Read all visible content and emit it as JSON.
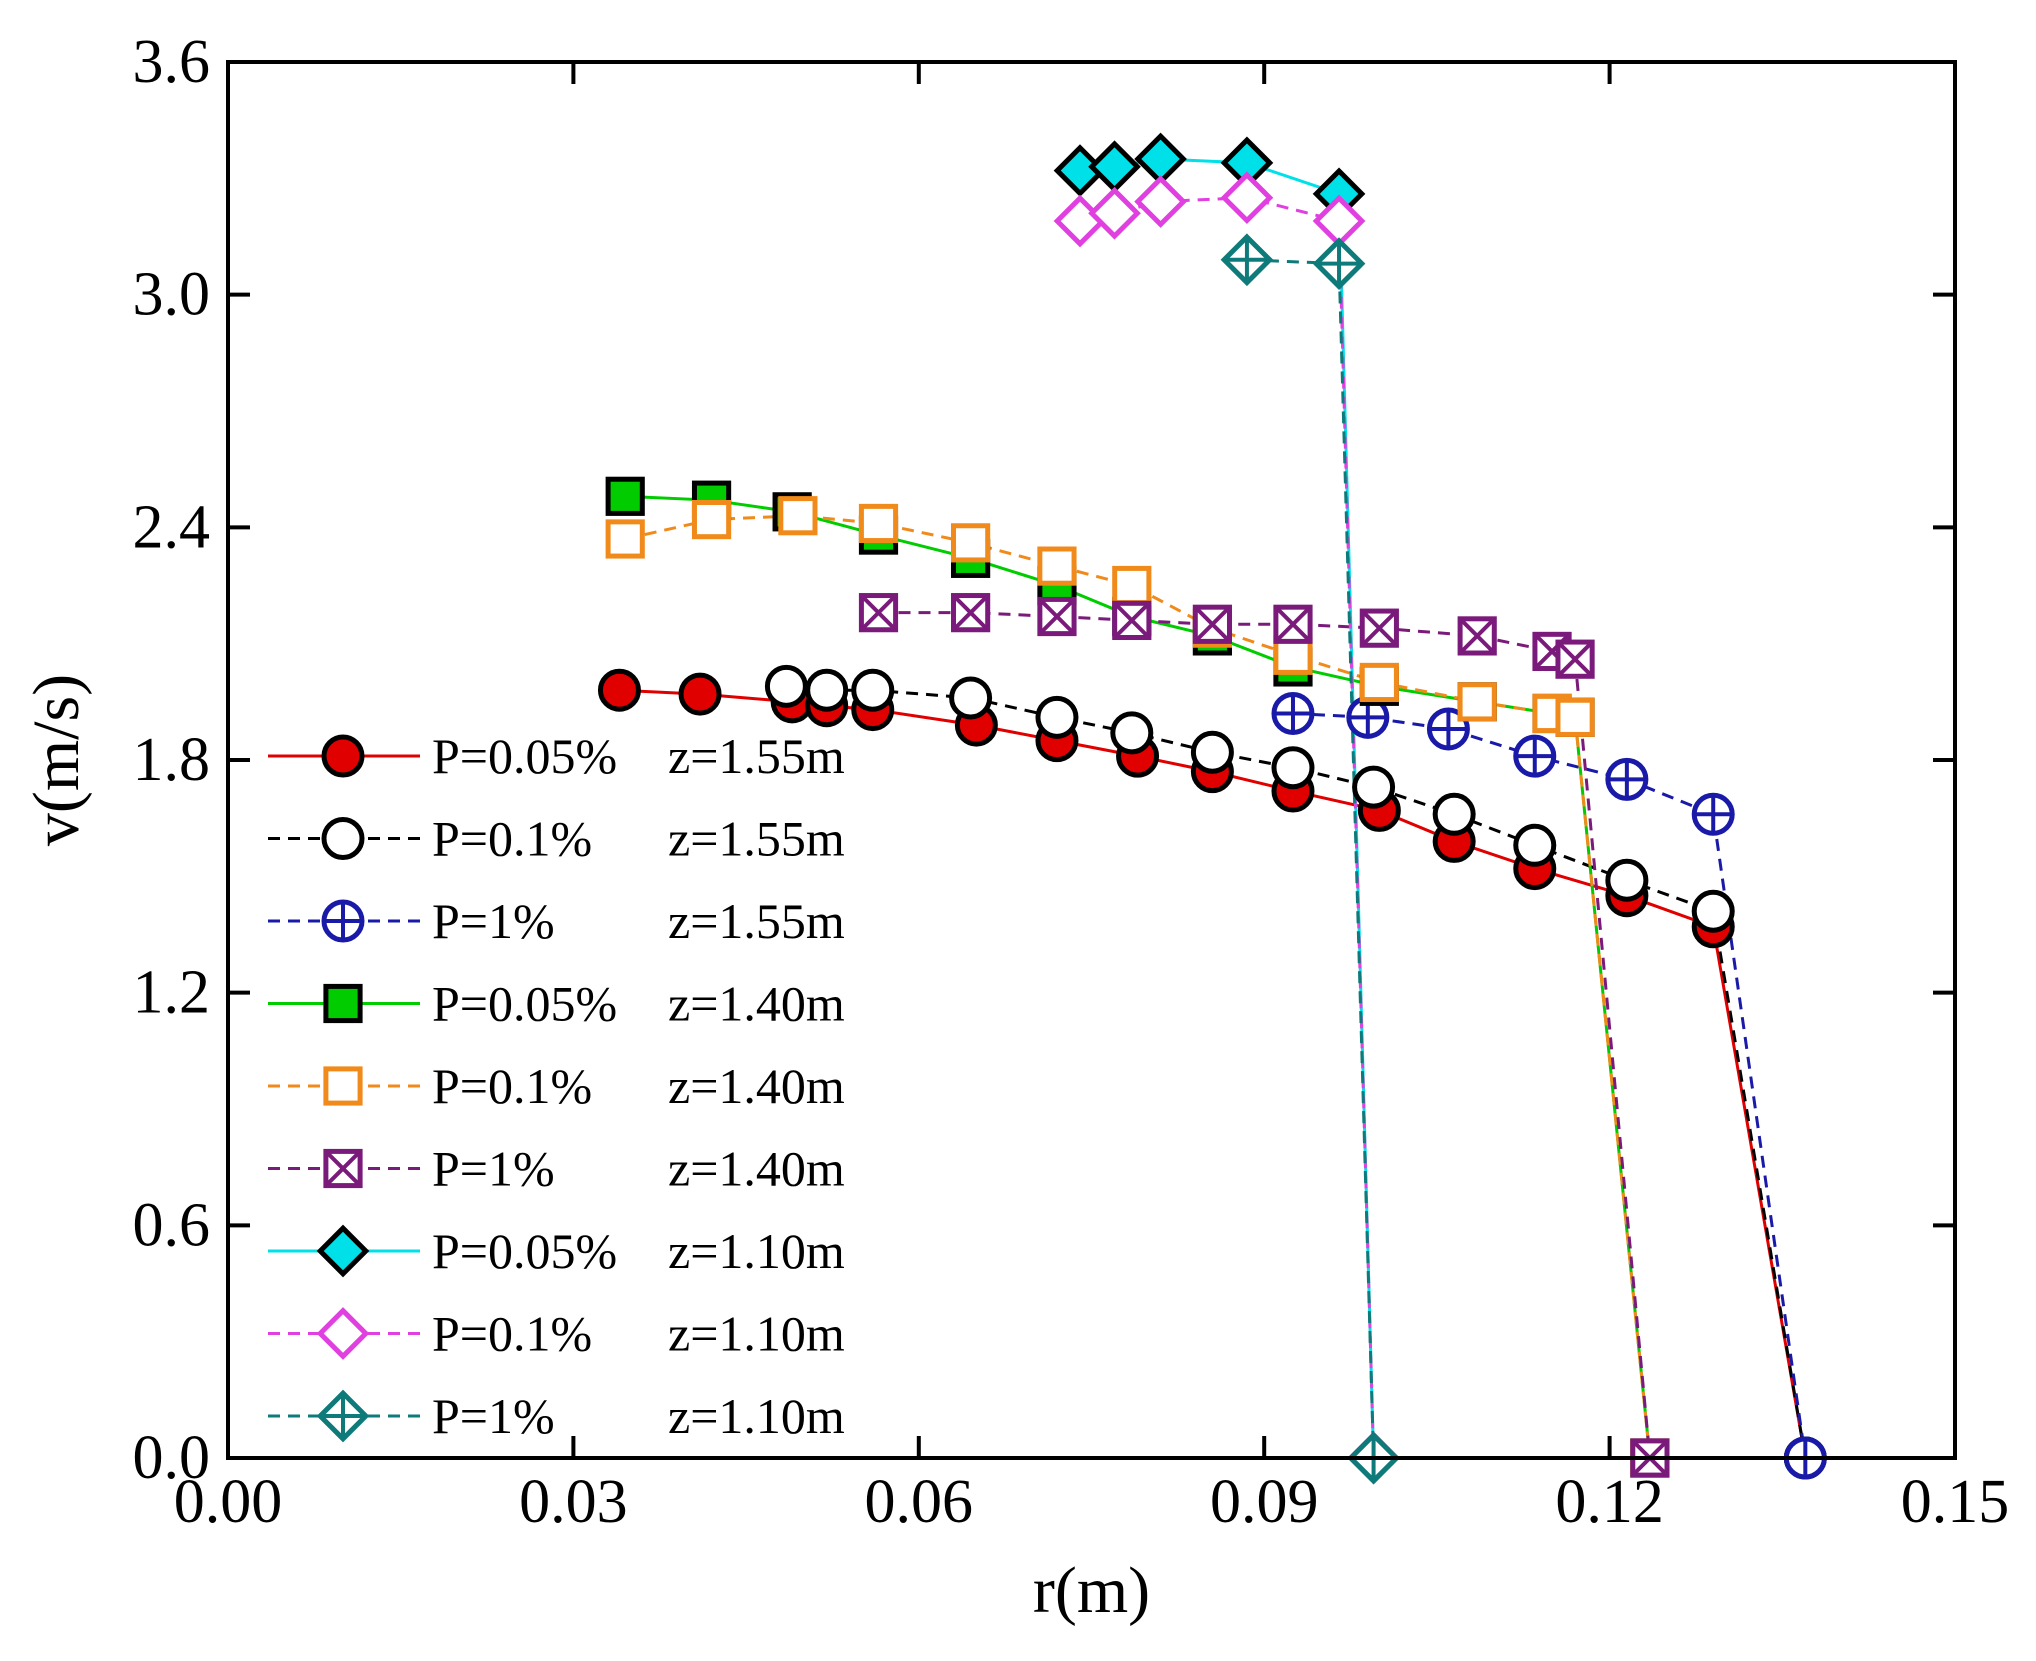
{
  "chart_data": {
    "type": "scatter",
    "xlabel": "r(m)",
    "ylabel": "v(m/s)",
    "xlim": [
      0,
      0.15
    ],
    "ylim": [
      0,
      3.6
    ],
    "xticks": [
      "0.00",
      "0.03",
      "0.06",
      "0.09",
      "0.12",
      "0.15"
    ],
    "yticks": [
      "0.0",
      "0.6",
      "1.2",
      "1.8",
      "2.4",
      "3.0",
      "3.6"
    ],
    "grid": false,
    "legend_position": "left",
    "series": [
      {
        "name": "P=0.05%",
        "z": "z=1.55m",
        "marker": "circle-filled",
        "color": "#e00000",
        "line": "solid",
        "x": [
          0.034,
          0.041,
          0.049,
          0.052,
          0.056,
          0.065,
          0.072,
          0.079,
          0.0855,
          0.0925,
          0.1,
          0.1065,
          0.1135,
          0.1215,
          0.129,
          0.137
        ],
        "y": [
          1.98,
          1.97,
          1.95,
          1.94,
          1.93,
          1.89,
          1.85,
          1.81,
          1.77,
          1.72,
          1.67,
          1.59,
          1.52,
          1.45,
          1.37,
          0.0
        ]
      },
      {
        "name": "P=0.1%",
        "z": "z=1.55m",
        "marker": "circle-open",
        "color": "#000000",
        "line": "dashed",
        "x": [
          0.0485,
          0.052,
          0.056,
          0.0645,
          0.072,
          0.0785,
          0.0855,
          0.0925,
          0.0995,
          0.1065,
          0.1135,
          0.1215,
          0.129,
          0.137
        ],
        "y": [
          1.99,
          1.98,
          1.98,
          1.96,
          1.91,
          1.87,
          1.82,
          1.78,
          1.73,
          1.66,
          1.58,
          1.49,
          1.41,
          0.0
        ]
      },
      {
        "name": "P=1%",
        "z": "z=1.55m",
        "marker": "circle-plus",
        "color": "#1a1aa8",
        "line": "dashed",
        "x": [
          0.0925,
          0.099,
          0.106,
          0.1135,
          0.1215,
          0.129,
          0.137
        ],
        "y": [
          1.92,
          1.91,
          1.88,
          1.81,
          1.75,
          1.66,
          0.0
        ]
      },
      {
        "name": "P=0.05%",
        "z": "z=1.40m",
        "marker": "square-filled",
        "color": "#00cc00",
        "line": "solid",
        "x": [
          0.0345,
          0.042,
          0.049,
          0.0565,
          0.0645,
          0.072,
          0.0785,
          0.0855,
          0.0925,
          0.1,
          0.1085,
          0.115,
          0.117,
          0.1235
        ],
        "y": [
          2.48,
          2.47,
          2.44,
          2.38,
          2.32,
          2.25,
          2.17,
          2.12,
          2.04,
          1.99,
          1.95,
          1.92,
          1.91,
          0.0
        ]
      },
      {
        "name": "P=0.1%",
        "z": "z=1.40m",
        "marker": "square-open",
        "color": "#f08a1a",
        "line": "dashed",
        "x": [
          0.0345,
          0.042,
          0.0495,
          0.0565,
          0.0645,
          0.072,
          0.0785,
          0.0855,
          0.0925,
          0.1,
          0.1085,
          0.115,
          0.117,
          0.1235
        ],
        "y": [
          2.37,
          2.42,
          2.43,
          2.41,
          2.36,
          2.3,
          2.25,
          2.14,
          2.07,
          2.0,
          1.95,
          1.92,
          1.91,
          0.0
        ]
      },
      {
        "name": "P=1%",
        "z": "z=1.40m",
        "marker": "square-cross",
        "color": "#7a1a7a",
        "line": "dashed",
        "x": [
          0.0565,
          0.0645,
          0.072,
          0.0785,
          0.0855,
          0.0925,
          0.1,
          0.1085,
          0.115,
          0.117,
          0.1235
        ],
        "y": [
          2.18,
          2.18,
          2.17,
          2.16,
          2.15,
          2.15,
          2.14,
          2.12,
          2.08,
          2.06,
          0.0
        ]
      },
      {
        "name": "P=0.05%",
        "z": "z=1.10m",
        "marker": "diamond-filled",
        "color": "#00e0e8",
        "line": "solid",
        "x": [
          0.074,
          0.077,
          0.081,
          0.0885,
          0.0965,
          0.0995
        ],
        "y": [
          3.32,
          3.33,
          3.35,
          3.34,
          3.26,
          0.0
        ]
      },
      {
        "name": "P=0.1%",
        "z": "z=1.10m",
        "marker": "diamond-open",
        "color": "#e040e0",
        "line": "dashed",
        "x": [
          0.074,
          0.077,
          0.081,
          0.0885,
          0.0965,
          0.0995
        ],
        "y": [
          3.19,
          3.21,
          3.24,
          3.25,
          3.19,
          0.0
        ]
      },
      {
        "name": "P=1%",
        "z": "z=1.10m",
        "marker": "diamond-plus",
        "color": "#0e7a7a",
        "line": "dashed",
        "x": [
          0.0885,
          0.0965,
          0.0995
        ],
        "y": [
          3.09,
          3.08,
          0.0
        ]
      }
    ]
  }
}
